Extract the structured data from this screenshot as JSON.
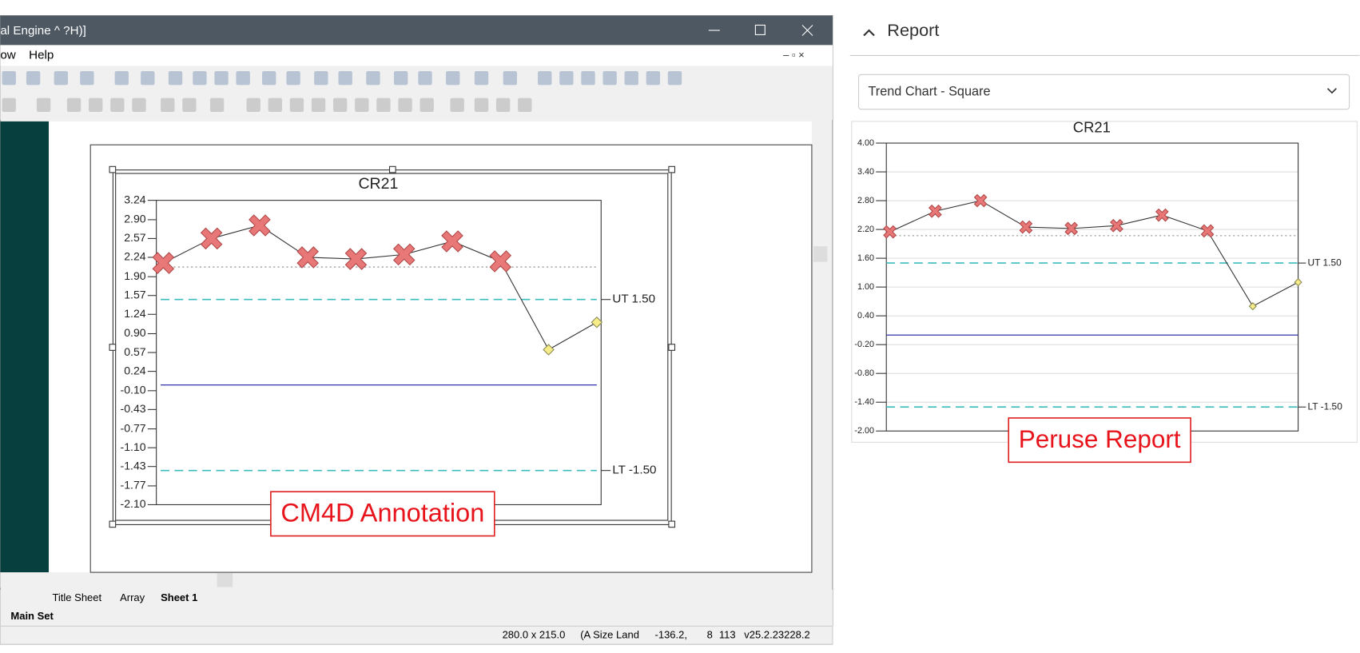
{
  "window": {
    "title": "al Engine ^ ?H)]",
    "menu": [
      "ow",
      "Help"
    ],
    "sheet_tabs": [
      "Title Sheet",
      "Array",
      "Sheet 1"
    ],
    "set_tab": "Main Set",
    "status": [
      "280.0 x 215.0",
      "(A Size Land",
      "-136.2,",
      "8",
      "113",
      "v25.2.23228.2"
    ]
  },
  "report": {
    "title": "Report",
    "dropdown": "Trend Chart - Square"
  },
  "chart_data": [
    {
      "type": "line",
      "title": "CR21",
      "annotation": "CM4D Annotation",
      "ylim": [
        -2.1,
        3.24
      ],
      "yticks": [
        3.24,
        {
          "value": 2.9,
          "label": "2.90"
        },
        2.57,
        2.24,
        {
          "value": 1.9,
          "label": "1.90"
        },
        1.57,
        1.24,
        {
          "value": 0.9,
          "label": "0.90"
        },
        0.57,
        0.24,
        {
          "value": -0.1,
          "label": "-0.10"
        },
        -0.43,
        -0.77,
        {
          "value": -1.1,
          "label": "-1.10"
        },
        -1.43,
        -1.77,
        {
          "value": -2.1,
          "label": "-2.10"
        }
      ],
      "reference_lines": [
        {
          "value": 1.5,
          "label": "UT 1.50",
          "color": "#3cbcbc",
          "style": "dashed"
        },
        {
          "value": -1.5,
          "label": "LT -1.50",
          "color": "#3cbcbc",
          "style": "dashed"
        },
        {
          "value": 0,
          "color": "#1a1aa0",
          "style": "solid"
        },
        {
          "value": 2.07,
          "color": "#888888",
          "style": "dotted"
        }
      ],
      "series": [
        {
          "color": "#333333",
          "marker_color": "#e87878",
          "values": [
            2.14,
            2.57,
            2.8,
            2.24,
            2.21,
            2.29,
            2.52,
            2.17,
            0.62,
            1.1
          ]
        }
      ]
    },
    {
      "type": "line",
      "title": "CR21",
      "annotation": "Peruse Report",
      "ylim": [
        -2,
        4
      ],
      "yticks": [
        {
          "value": 4,
          "label": "4.00"
        },
        {
          "value": 3.4,
          "label": "3.40"
        },
        {
          "value": 2.8,
          "label": "2.80"
        },
        {
          "value": 2.2,
          "label": "2.20"
        },
        {
          "value": 1.6,
          "label": "1.60"
        },
        {
          "value": 1,
          "label": "1.00"
        },
        {
          "value": 0.4,
          "label": "0.40"
        },
        {
          "value": -0.2,
          "label": "-0.20"
        },
        {
          "value": -0.8,
          "label": "-0.80"
        },
        {
          "value": -1.4,
          "label": "-1.40"
        },
        {
          "value": -2,
          "label": "-2.00"
        }
      ],
      "grid": true,
      "reference_lines": [
        {
          "value": 1.5,
          "label": "UT 1.50",
          "color": "#3cbcbc",
          "style": "dashed"
        },
        {
          "value": -1.5,
          "label": "LT -1.50",
          "color": "#3cbcbc",
          "style": "dashed"
        },
        {
          "value": 0,
          "color": "#1a1aa0",
          "style": "solid"
        },
        {
          "value": 2.07,
          "color": "#888888",
          "style": "dotted"
        }
      ],
      "series": [
        {
          "color": "#333333",
          "marker_color": "#e87878",
          "values": [
            2.15,
            2.58,
            2.8,
            2.25,
            2.22,
            2.28,
            2.5,
            2.17,
            0.6,
            1.1
          ]
        }
      ]
    }
  ]
}
